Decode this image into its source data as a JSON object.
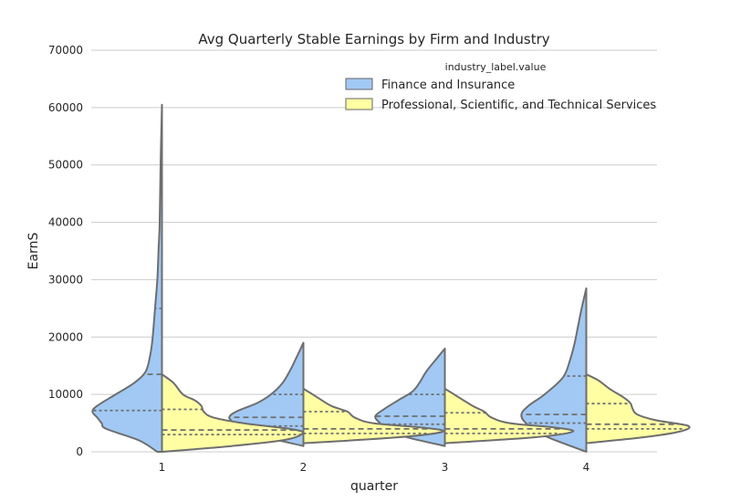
{
  "chart_data": {
    "type": "violin",
    "title": "Avg Quarterly Stable Earnings by Firm and Industry",
    "xlabel": "quarter",
    "ylabel": "EarnS",
    "ylim": [
      0,
      70000
    ],
    "yticks": [
      0,
      10000,
      20000,
      30000,
      40000,
      50000,
      60000,
      70000
    ],
    "grid": "horizontal",
    "legend": {
      "title": "industry_label.value",
      "placement": "top-right"
    },
    "categories": [
      "1",
      "2",
      "3",
      "4"
    ],
    "series": [
      {
        "name": "Finance and Insurance",
        "color": "#a1c9f4",
        "side": "left",
        "violins": [
          {
            "min": 0,
            "max": 60500,
            "q1": 7200,
            "median": 13500,
            "q3": 25000,
            "profile": [
              [
                0,
                0.02
              ],
              [
                2000,
                0.1
              ],
              [
                4000,
                0.24
              ],
              [
                5000,
                0.26
              ],
              [
                6000,
                0.28
              ],
              [
                7000,
                0.3
              ],
              [
                8000,
                0.28
              ],
              [
                10000,
                0.2
              ],
              [
                12000,
                0.12
              ],
              [
                14000,
                0.07
              ],
              [
                17000,
                0.05
              ],
              [
                20000,
                0.04
              ],
              [
                25000,
                0.03
              ],
              [
                30000,
                0.02
              ],
              [
                35000,
                0.015
              ],
              [
                40000,
                0.01
              ],
              [
                50000,
                0.006
              ],
              [
                60500,
                0.0
              ]
            ]
          },
          {
            "min": 1000,
            "max": 19000,
            "q1": 4500,
            "median": 6000,
            "q3": 10000,
            "profile": [
              [
                1000,
                0.0
              ],
              [
                2500,
                0.16
              ],
              [
                3800,
                0.28
              ],
              [
                5000,
                0.3
              ],
              [
                6000,
                0.32
              ],
              [
                7000,
                0.29
              ],
              [
                8500,
                0.2
              ],
              [
                10000,
                0.14
              ],
              [
                12000,
                0.09
              ],
              [
                14000,
                0.06
              ],
              [
                16000,
                0.035
              ],
              [
                19000,
                0.0
              ]
            ]
          },
          {
            "min": 1000,
            "max": 18000,
            "q1": 4800,
            "median": 6200,
            "q3": 10000,
            "profile": [
              [
                1000,
                0.0
              ],
              [
                2500,
                0.16
              ],
              [
                3800,
                0.25
              ],
              [
                5000,
                0.28
              ],
              [
                6200,
                0.3
              ],
              [
                7500,
                0.26
              ],
              [
                9000,
                0.2
              ],
              [
                10500,
                0.14
              ],
              [
                12000,
                0.11
              ],
              [
                14000,
                0.08
              ],
              [
                16000,
                0.04
              ],
              [
                18000,
                0.0
              ]
            ]
          },
          {
            "min": 0,
            "max": 28500,
            "q1": 5000,
            "median": 6500,
            "q3": 13200,
            "profile": [
              [
                0,
                0.0
              ],
              [
                1500,
                0.1
              ],
              [
                3000,
                0.19
              ],
              [
                5000,
                0.26
              ],
              [
                6500,
                0.28
              ],
              [
                8000,
                0.25
              ],
              [
                10000,
                0.18
              ],
              [
                13000,
                0.1
              ],
              [
                16000,
                0.07
              ],
              [
                19000,
                0.05
              ],
              [
                22000,
                0.035
              ],
              [
                25000,
                0.02
              ],
              [
                28500,
                0.0
              ]
            ]
          }
        ]
      },
      {
        "name": "Professional, Scientific, and Technical Services",
        "color": "#fffea3",
        "side": "right",
        "violins": [
          {
            "min": 0,
            "max": 13500,
            "q1": 3000,
            "median": 3800,
            "q3": 7400,
            "profile": [
              [
                0,
                0.0
              ],
              [
                1000,
                0.3
              ],
              [
                2000,
                0.52
              ],
              [
                3000,
                0.6
              ],
              [
                3800,
                0.58
              ],
              [
                5000,
                0.35
              ],
              [
                6000,
                0.22
              ],
              [
                7000,
                0.18
              ],
              [
                8000,
                0.17
              ],
              [
                9000,
                0.14
              ],
              [
                10000,
                0.09
              ],
              [
                12000,
                0.05
              ],
              [
                13500,
                0.0
              ]
            ]
          },
          {
            "min": 1500,
            "max": 11000,
            "q1": 3200,
            "median": 4000,
            "q3": 7000,
            "profile": [
              [
                1500,
                0.0
              ],
              [
                2500,
                0.4
              ],
              [
                3500,
                0.6
              ],
              [
                4200,
                0.52
              ],
              [
                5000,
                0.3
              ],
              [
                6000,
                0.22
              ],
              [
                7000,
                0.19
              ],
              [
                8000,
                0.12
              ],
              [
                9500,
                0.06
              ],
              [
                11000,
                0.0
              ]
            ]
          },
          {
            "min": 1500,
            "max": 11000,
            "q1": 3200,
            "median": 4000,
            "q3": 6800,
            "profile": [
              [
                1500,
                0.0
              ],
              [
                2500,
                0.38
              ],
              [
                3500,
                0.55
              ],
              [
                4200,
                0.48
              ],
              [
                5000,
                0.28
              ],
              [
                6000,
                0.2
              ],
              [
                7000,
                0.17
              ],
              [
                8000,
                0.12
              ],
              [
                9500,
                0.06
              ],
              [
                11000,
                0.0
              ]
            ]
          },
          {
            "min": 1500,
            "max": 13500,
            "q1": 4000,
            "median": 4800,
            "q3": 8400,
            "profile": [
              [
                1500,
                0.0
              ],
              [
                2500,
                0.24
              ],
              [
                3500,
                0.4
              ],
              [
                4500,
                0.44
              ],
              [
                5500,
                0.3
              ],
              [
                6500,
                0.22
              ],
              [
                7500,
                0.2
              ],
              [
                8500,
                0.19
              ],
              [
                9500,
                0.16
              ],
              [
                11000,
                0.1
              ],
              [
                12500,
                0.05
              ],
              [
                13500,
                0.0
              ]
            ]
          }
        ]
      }
    ]
  }
}
